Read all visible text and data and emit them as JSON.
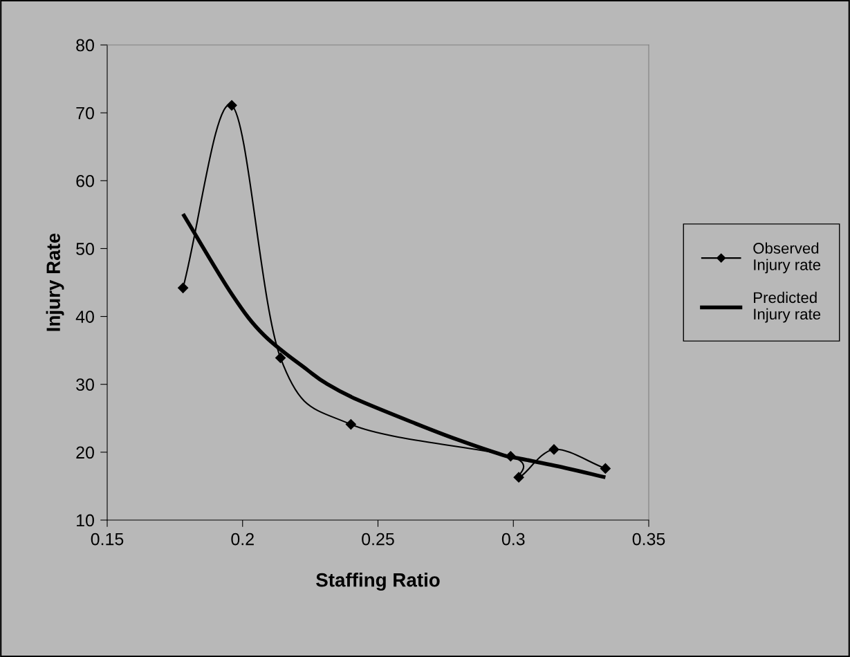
{
  "chart_data": {
    "type": "line",
    "xlabel": "Staffing Ratio",
    "ylabel": "Injury Rate",
    "xlim": [
      0.15,
      0.35
    ],
    "xticks": [
      0.15,
      0.2,
      0.25,
      0.3,
      0.35
    ],
    "ylim": [
      10,
      80
    ],
    "yticks": [
      10,
      20,
      30,
      40,
      50,
      60,
      70,
      80
    ],
    "legend": "right",
    "series": [
      {
        "name": "Observed Injury rate",
        "color": "#000000",
        "marker": "diamond",
        "x": [
          0.178,
          0.196,
          0.214,
          0.24,
          0.299,
          0.302,
          0.315,
          0.334
        ],
        "values": [
          44.2,
          71.1,
          33.9,
          24.1,
          19.4,
          16.3,
          20.4,
          17.6
        ]
      },
      {
        "name": "Predicted Injury rate",
        "color": "#000000",
        "marker": "none",
        "x": [
          0.178,
          0.196,
          0.208,
          0.224,
          0.231,
          0.242,
          0.264,
          0.279,
          0.296,
          0.302,
          0.319,
          0.334
        ],
        "values": [
          55.1,
          43.3,
          37.2,
          32.1,
          30.1,
          27.8,
          24.2,
          21.9,
          19.6,
          19.1,
          17.7,
          16.3
        ]
      }
    ]
  }
}
